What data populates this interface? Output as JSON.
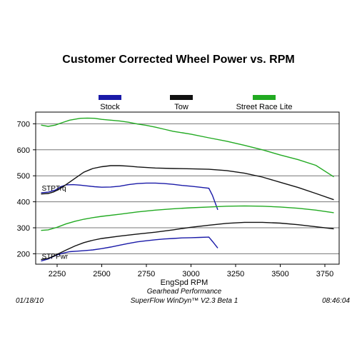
{
  "chart_data": {
    "type": "line",
    "title": "Customer Corrected Wheel Power vs. RPM",
    "xlabel": "EngSpd  RPM",
    "ylabel": "",
    "xlim": [
      2130,
      3830
    ],
    "ylim": [
      160,
      745
    ],
    "x_ticks": [
      2250,
      2500,
      2750,
      3000,
      3250,
      3500,
      3750
    ],
    "y_ticks": [
      200,
      300,
      400,
      500,
      600,
      700
    ],
    "grid": "horizontal",
    "legend_position": "top",
    "series": [
      {
        "name": "Stock",
        "color": "#1a1aa8",
        "curves": [
          {
            "label": "STPTrq",
            "points": [
              [
                2160,
                435
              ],
              [
                2200,
                437
              ],
              [
                2240,
                445
              ],
              [
                2270,
                458
              ],
              [
                2300,
                465
              ],
              [
                2340,
                466
              ],
              [
                2380,
                464
              ],
              [
                2420,
                461
              ],
              [
                2460,
                458
              ],
              [
                2500,
                456
              ],
              [
                2550,
                457
              ],
              [
                2600,
                460
              ],
              [
                2650,
                466
              ],
              [
                2700,
                470
              ],
              [
                2750,
                472
              ],
              [
                2800,
                472
              ],
              [
                2850,
                470
              ],
              [
                2900,
                467
              ],
              [
                2950,
                463
              ],
              [
                3000,
                460
              ],
              [
                3050,
                456
              ],
              [
                3100,
                452
              ],
              [
                3120,
                425
              ],
              [
                3150,
                369
              ]
            ]
          },
          {
            "label": "STPPwr",
            "points": [
              [
                2160,
                172
              ],
              [
                2200,
                180
              ],
              [
                2240,
                193
              ],
              [
                2280,
                202
              ],
              [
                2320,
                208
              ],
              [
                2360,
                210
              ],
              [
                2400,
                212
              ],
              [
                2450,
                215
              ],
              [
                2500,
                220
              ],
              [
                2550,
                226
              ],
              [
                2600,
                233
              ],
              [
                2650,
                240
              ],
              [
                2700,
                246
              ],
              [
                2750,
                250
              ],
              [
                2800,
                254
              ],
              [
                2850,
                257
              ],
              [
                2900,
                259
              ],
              [
                2950,
                261
              ],
              [
                3000,
                262
              ],
              [
                3050,
                263
              ],
              [
                3100,
                264
              ],
              [
                3120,
                248
              ],
              [
                3150,
                222
              ]
            ]
          }
        ]
      },
      {
        "name": "Tow",
        "color": "#111111",
        "curves": [
          {
            "points": [
              [
                2160,
                430
              ],
              [
                2200,
                432
              ],
              [
                2230,
                438
              ],
              [
                2260,
                448
              ],
              [
                2300,
                466
              ],
              [
                2350,
                490
              ],
              [
                2400,
                514
              ],
              [
                2450,
                528
              ],
              [
                2500,
                535
              ],
              [
                2550,
                539
              ],
              [
                2600,
                539
              ],
              [
                2650,
                537
              ],
              [
                2700,
                534
              ],
              [
                2750,
                532
              ],
              [
                2800,
                530
              ],
              [
                2900,
                528
              ],
              [
                3000,
                527
              ],
              [
                3100,
                525
              ],
              [
                3200,
                520
              ],
              [
                3300,
                510
              ],
              [
                3400,
                495
              ],
              [
                3500,
                475
              ],
              [
                3600,
                455
              ],
              [
                3700,
                432
              ],
              [
                3800,
                408
              ]
            ]
          },
          {
            "points": [
              [
                2160,
                178
              ],
              [
                2200,
                182
              ],
              [
                2250,
                198
              ],
              [
                2300,
                214
              ],
              [
                2350,
                230
              ],
              [
                2400,
                243
              ],
              [
                2450,
                252
              ],
              [
                2500,
                259
              ],
              [
                2600,
                268
              ],
              [
                2700,
                276
              ],
              [
                2800,
                283
              ],
              [
                2900,
                292
              ],
              [
                3000,
                302
              ],
              [
                3100,
                310
              ],
              [
                3200,
                317
              ],
              [
                3300,
                321
              ],
              [
                3400,
                321
              ],
              [
                3500,
                318
              ],
              [
                3600,
                312
              ],
              [
                3700,
                304
              ],
              [
                3800,
                296
              ]
            ]
          }
        ]
      },
      {
        "name": "Street Race Lite",
        "color": "#22aa22",
        "curves": [
          {
            "points": [
              [
                2160,
                695
              ],
              [
                2200,
                690
              ],
              [
                2240,
                695
              ],
              [
                2280,
                705
              ],
              [
                2320,
                714
              ],
              [
                2380,
                721
              ],
              [
                2420,
                722
              ],
              [
                2460,
                721
              ],
              [
                2500,
                717
              ],
              [
                2550,
                714
              ],
              [
                2600,
                711
              ],
              [
                2650,
                706
              ],
              [
                2700,
                699
              ],
              [
                2750,
                694
              ],
              [
                2800,
                687
              ],
              [
                2850,
                679
              ],
              [
                2900,
                671
              ],
              [
                3000,
                660
              ],
              [
                3100,
                646
              ],
              [
                3200,
                633
              ],
              [
                3300,
                617
              ],
              [
                3400,
                600
              ],
              [
                3500,
                580
              ],
              [
                3600,
                562
              ],
              [
                3700,
                540
              ],
              [
                3800,
                496
              ]
            ]
          },
          {
            "points": [
              [
                2160,
                290
              ],
              [
                2200,
                292
              ],
              [
                2250,
                302
              ],
              [
                2300,
                315
              ],
              [
                2350,
                325
              ],
              [
                2400,
                333
              ],
              [
                2450,
                339
              ],
              [
                2500,
                344
              ],
              [
                2600,
                352
              ],
              [
                2700,
                361
              ],
              [
                2800,
                368
              ],
              [
                2900,
                373
              ],
              [
                3000,
                377
              ],
              [
                3100,
                380
              ],
              [
                3200,
                383
              ],
              [
                3300,
                384
              ],
              [
                3400,
                383
              ],
              [
                3500,
                380
              ],
              [
                3600,
                375
              ],
              [
                3700,
                368
              ],
              [
                3800,
                358
              ]
            ]
          }
        ]
      }
    ],
    "annotations": [
      "STPTrq",
      "STPPwr"
    ]
  },
  "footer": {
    "date": "01/18/10",
    "shop": "Gearhead Performance",
    "software": "SuperFlow WinDyn™ V2.3 Beta 1",
    "time": "08:46:04"
  }
}
